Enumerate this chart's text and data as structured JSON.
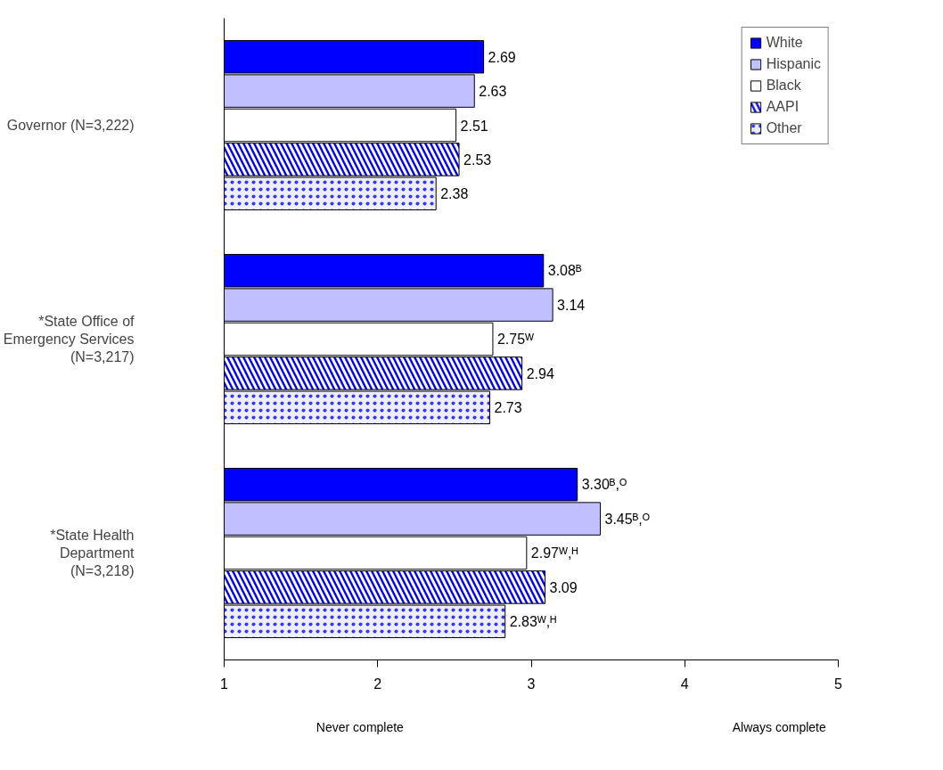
{
  "chart_data": {
    "type": "bar",
    "orientation": "horizontal",
    "categories": [
      "Governor (N=3,222)",
      "*State Office of Emergency Services (N=3,217)",
      "*State Health Department (N=3,218)"
    ],
    "series": [
      {
        "name": "White",
        "color": "#0000ff",
        "values": [
          2.69,
          3.08,
          3.3
        ],
        "value_labels": [
          "2.69",
          "3.08ᴮ",
          "3.30ᴮ,ᴼ"
        ]
      },
      {
        "name": "Hispanic",
        "color": "#c0c0ff",
        "values": [
          2.63,
          3.14,
          3.45
        ],
        "value_labels": [
          "2.63",
          "3.14",
          "3.45ᴮ,ᴼ"
        ]
      },
      {
        "name": "Black",
        "color": "#ffffff",
        "values": [
          2.51,
          2.75,
          2.97
        ],
        "value_labels": [
          "2.51",
          "2.75ᵂ",
          "2.97ᵂ,ᴴ"
        ]
      },
      {
        "name": "AAPI",
        "color": "#0000ff",
        "values": [
          2.53,
          2.94,
          3.09
        ],
        "value_labels": [
          "2.53",
          "2.94",
          "3.09"
        ]
      },
      {
        "name": "Other",
        "color": "#eeeeff",
        "values": [
          2.38,
          2.73,
          2.83
        ],
        "value_labels": [
          "2.38",
          "2.73",
          "2.83ᵂ,ᴴ"
        ]
      }
    ],
    "xlim": [
      1,
      5
    ],
    "xticks": [
      1,
      2,
      3,
      4,
      5
    ],
    "grid": false,
    "legend": "top right",
    "annotations": [
      "Never complete",
      "Always complete"
    ]
  }
}
